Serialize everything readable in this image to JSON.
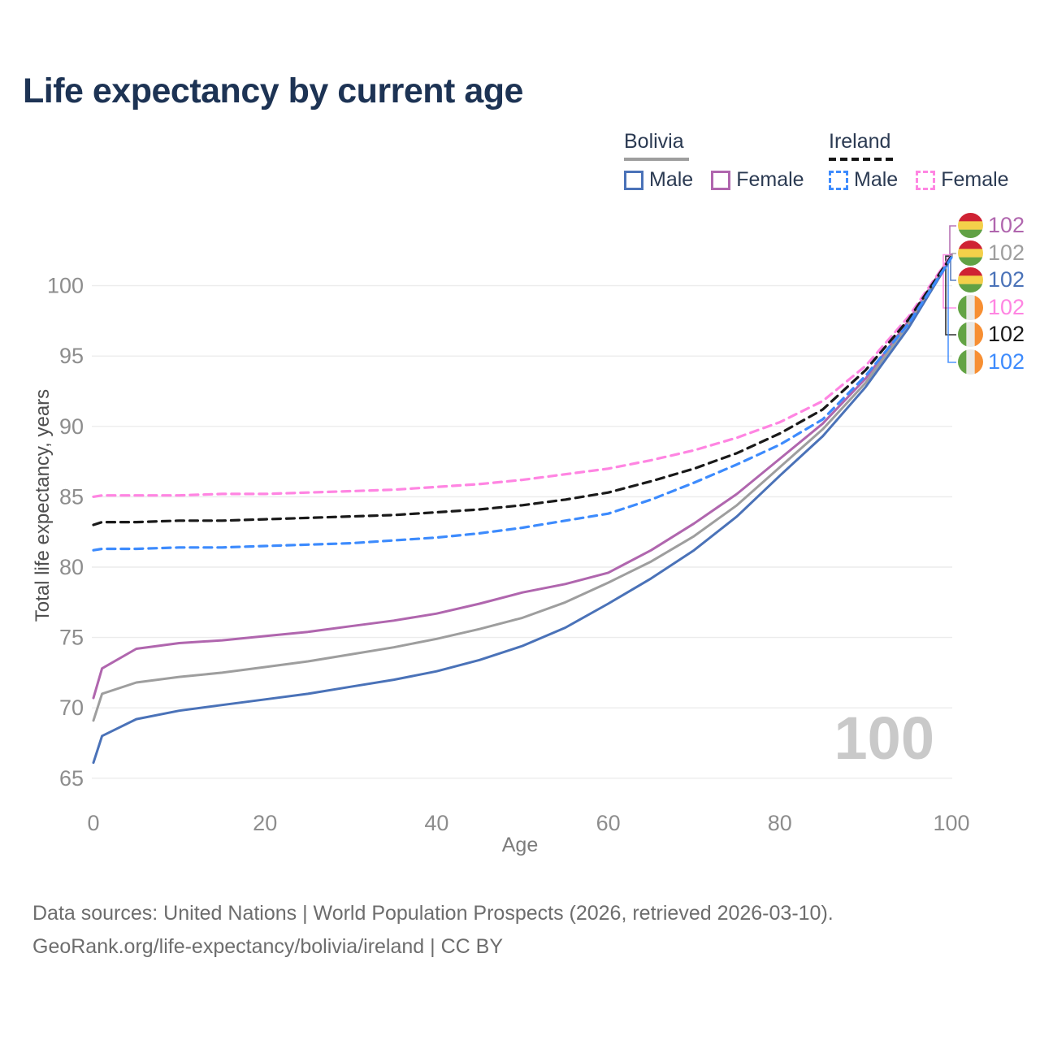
{
  "page": {
    "title": "Life expectancy by current age"
  },
  "legend": {
    "groups": [
      {
        "label": "Bolivia",
        "line_style": "solid",
        "items": [
          {
            "label": "Male",
            "color": "#4a72b8"
          },
          {
            "label": "Female",
            "color": "#b066ae"
          }
        ]
      },
      {
        "label": "Ireland",
        "line_style": "dashed",
        "items": [
          {
            "label": "Male",
            "color": "#3d8bfd"
          },
          {
            "label": "Female",
            "color": "#ff85e2"
          }
        ]
      }
    ]
  },
  "chart_data": {
    "type": "line",
    "title": "Life expectancy by current age",
    "xlabel": "Age",
    "ylabel": "Total life expectancy, years",
    "xlim": [
      0,
      100
    ],
    "ylim": [
      65,
      102.5
    ],
    "x_ticks": [
      0,
      20,
      40,
      60,
      80,
      100
    ],
    "y_ticks": [
      65,
      70,
      75,
      80,
      85,
      90,
      95,
      100
    ],
    "grid": "horizontal-only",
    "legend_position": "top-right",
    "age_counter": "100",
    "ages": [
      0,
      1,
      5,
      10,
      15,
      20,
      25,
      30,
      35,
      40,
      45,
      50,
      55,
      60,
      65,
      70,
      75,
      80,
      85,
      90,
      95,
      100
    ],
    "flags": {
      "Bolivia": {
        "type": "horizontal-stripes",
        "colors": [
          "#cf2233",
          "#f4d04a",
          "#61a144"
        ]
      },
      "Ireland": {
        "type": "vertical-stripes",
        "colors": [
          "#63a344",
          "#e9e9e6",
          "#f78f33"
        ]
      }
    },
    "series": [
      {
        "name": "Bolivia Female",
        "country": "Bolivia",
        "sex": "Female",
        "style": "solid",
        "color": "#b066ae",
        "end_label": "102",
        "values": [
          70.7,
          72.8,
          74.2,
          74.6,
          74.8,
          75.1,
          75.4,
          75.8,
          76.2,
          76.7,
          77.4,
          78.2,
          78.8,
          79.6,
          81.2,
          83.1,
          85.2,
          87.7,
          90.2,
          93.4,
          97.5,
          102.2
        ]
      },
      {
        "name": "Bolivia Both sexes",
        "country": "Bolivia",
        "sex": "Both sexes",
        "style": "solid",
        "color": "#9e9e9e",
        "end_label": "102",
        "values": [
          69.1,
          71.0,
          71.8,
          72.2,
          72.5,
          72.9,
          73.3,
          73.8,
          74.3,
          74.9,
          75.6,
          76.4,
          77.5,
          78.9,
          80.4,
          82.2,
          84.4,
          87.1,
          89.8,
          93.1,
          97.3,
          102.1
        ]
      },
      {
        "name": "Bolivia Male",
        "country": "Bolivia",
        "sex": "Male",
        "style": "solid",
        "color": "#4a72b8",
        "end_label": "102",
        "values": [
          66.1,
          68.0,
          69.2,
          69.8,
          70.2,
          70.6,
          71.0,
          71.5,
          72.0,
          72.6,
          73.4,
          74.4,
          75.7,
          77.4,
          79.2,
          81.2,
          83.6,
          86.5,
          89.3,
          92.8,
          97.0,
          102.0
        ]
      },
      {
        "name": "Ireland Female",
        "country": "Ireland",
        "sex": "Female",
        "style": "dashed",
        "color": "#ff85e2",
        "end_label": "102",
        "values": [
          85.0,
          85.1,
          85.1,
          85.1,
          85.2,
          85.2,
          85.3,
          85.4,
          85.5,
          85.7,
          85.9,
          86.2,
          86.6,
          87.0,
          87.6,
          88.3,
          89.2,
          90.3,
          91.8,
          94.3,
          97.8,
          102.2
        ]
      },
      {
        "name": "Ireland Both sexes",
        "country": "Ireland",
        "sex": "Both sexes",
        "style": "dashed",
        "color": "#1a1a1a",
        "end_label": "102",
        "values": [
          83.0,
          83.2,
          83.2,
          83.3,
          83.3,
          83.4,
          83.5,
          83.6,
          83.7,
          83.9,
          84.1,
          84.4,
          84.8,
          85.3,
          86.1,
          87.0,
          88.1,
          89.5,
          91.2,
          94.0,
          97.6,
          102.1
        ]
      },
      {
        "name": "Ireland Male",
        "country": "Ireland",
        "sex": "Male",
        "style": "dashed",
        "color": "#3d8bfd",
        "end_label": "102",
        "values": [
          81.2,
          81.3,
          81.3,
          81.4,
          81.4,
          81.5,
          81.6,
          81.7,
          81.9,
          82.1,
          82.4,
          82.8,
          83.3,
          83.8,
          84.8,
          86.0,
          87.3,
          88.7,
          90.5,
          93.6,
          97.3,
          102.0
        ]
      }
    ]
  },
  "footer": {
    "line1": "Data sources: United Nations | World Population Prospects (2026, retrieved 2026-03-10).",
    "line2": "GeoRank.org/life-expectancy/bolivia/ireland | CC BY"
  }
}
